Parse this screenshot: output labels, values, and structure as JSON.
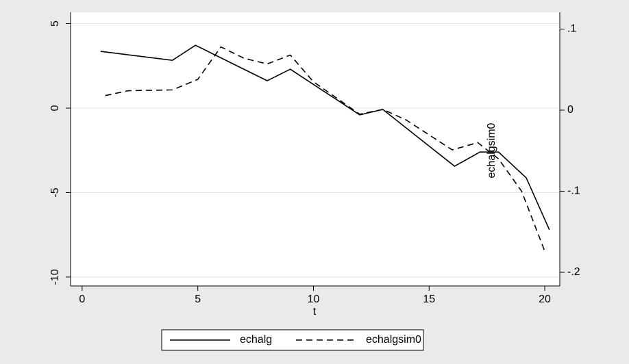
{
  "chart_data": {
    "type": "line",
    "x_label": "t",
    "xlim": [
      -0.5,
      20.65
    ],
    "xticks": [
      0,
      5,
      10,
      15,
      20
    ],
    "ylim": [
      -10.53,
      5.67
    ],
    "yticks": [
      5,
      0,
      -5,
      -10
    ],
    "y2lim": [
      -0.2169,
      0.1207
    ],
    "y2ticks": [
      {
        "value": 0.1,
        "label": ".1"
      },
      0,
      {
        "value": -0.1,
        "label": "-.1"
      },
      {
        "value": -0.2,
        "label": "-.2"
      }
    ],
    "grid": true,
    "legend": "bottom",
    "series": [
      {
        "name": "echalg",
        "color": "#000000",
        "dash": "solid",
        "x": [
          0.8,
          3.9,
          4.9,
          8,
          9,
          12,
          13,
          16.1,
          17.2,
          18,
          19.2,
          20.2
        ],
        "values": [
          3.36,
          2.83,
          3.72,
          1.62,
          2.3,
          -0.4,
          -0.08,
          -3.44,
          -2.6,
          -2.6,
          -4.13,
          -7.2
        ]
      },
      {
        "name": "echalgsim0",
        "color": "#000000",
        "dash": "dashed",
        "axis": "y2",
        "x": [
          1,
          2,
          3.9,
          5,
          6,
          7,
          8,
          9,
          10,
          12,
          13,
          14,
          16,
          17.1,
          18,
          19,
          20
        ],
        "values": [
          0.018,
          0.024,
          0.025,
          0.038,
          0.078,
          0.064,
          0.057,
          0.068,
          0.035,
          -0.005,
          0.001,
          -0.012,
          -0.049,
          -0.04,
          -0.06,
          -0.1,
          -0.174
        ]
      }
    ],
    "annotations": [
      "echalgsim0"
    ]
  }
}
